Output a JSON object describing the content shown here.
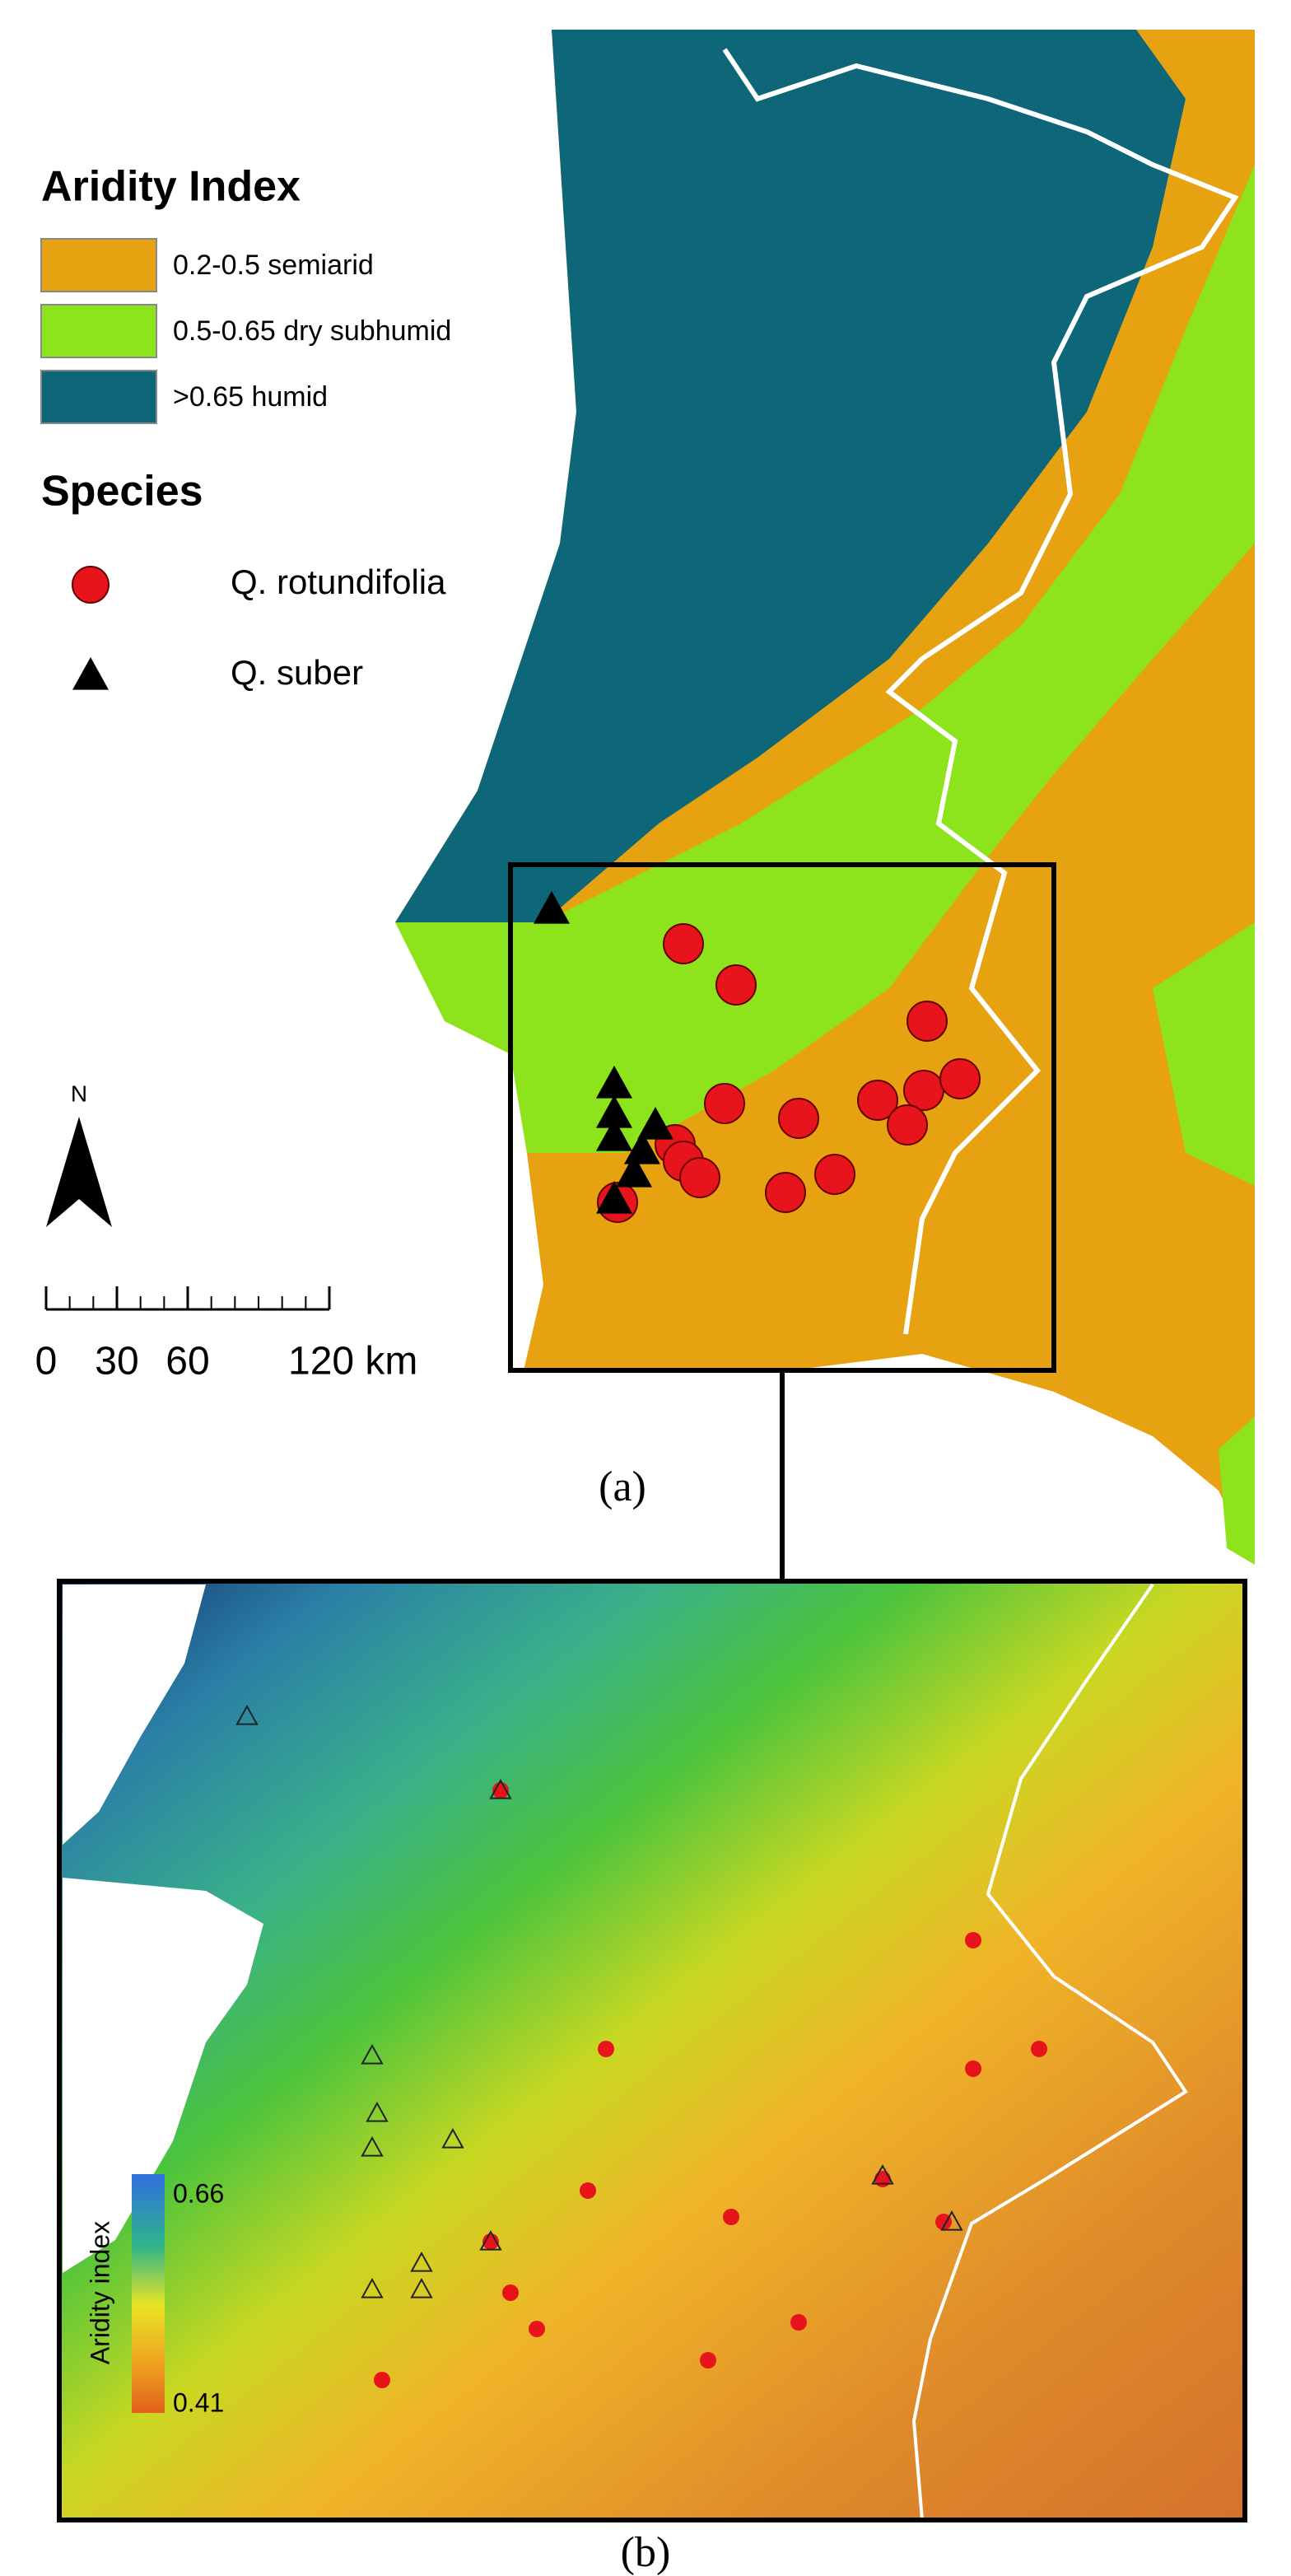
{
  "panel_a": {
    "legend": {
      "title": "Aridity Index",
      "classes": [
        {
          "label": "0.2-0.5 semiarid",
          "color": "#e6a210"
        },
        {
          "label": "0.5-0.65 dry subhumid",
          "color": "#8de31c"
        },
        {
          "label": ">0.65 humid",
          "color": "#0e6778"
        }
      ]
    },
    "species": {
      "title": "Species",
      "items": [
        {
          "label": "Q. rotundifolia",
          "color": "#e8141b",
          "marker": "circle"
        },
        {
          "label": "Q. suber",
          "color": "#000000",
          "marker": "triangle"
        }
      ]
    },
    "north": "N",
    "scale_bar": {
      "ticks": [
        0,
        30,
        60,
        {
          "value": 120,
          "label": "120 km"
        }
      ]
    },
    "caption": "(a)"
  },
  "panel_b": {
    "colorbar": {
      "label": "Aridity index",
      "max": 0.66,
      "min": 0.41
    },
    "caption": "(b)"
  }
}
